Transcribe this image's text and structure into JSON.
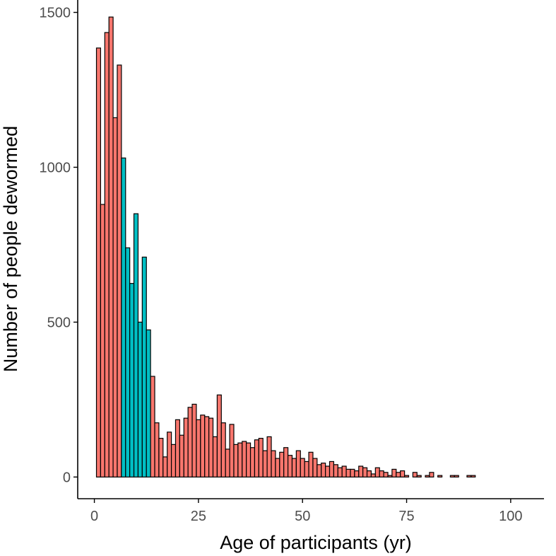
{
  "chart_data": {
    "type": "bar",
    "title": "",
    "xlabel": "Age of participants (yr)",
    "ylabel": "Number of people dewormed",
    "xlim": [
      -4,
      108
    ],
    "ylim": [
      -70,
      1540
    ],
    "x_ticks": [
      0,
      25,
      50,
      75,
      100
    ],
    "y_ticks": [
      0,
      500,
      1000,
      1500
    ],
    "colors": {
      "default": "#F8766D",
      "highlight": "#00BFC4"
    },
    "highlight_range": [
      7,
      13
    ],
    "series": [
      {
        "name": "Number of people dewormed",
        "x": [
          1,
          2,
          3,
          4,
          5,
          6,
          7,
          8,
          9,
          10,
          11,
          12,
          13,
          14,
          15,
          16,
          17,
          18,
          19,
          20,
          21,
          22,
          23,
          24,
          25,
          26,
          27,
          28,
          29,
          30,
          31,
          32,
          33,
          34,
          35,
          36,
          37,
          38,
          39,
          40,
          41,
          42,
          43,
          44,
          45,
          46,
          47,
          48,
          49,
          50,
          51,
          52,
          53,
          54,
          55,
          56,
          57,
          58,
          59,
          60,
          61,
          62,
          63,
          64,
          65,
          66,
          67,
          68,
          69,
          70,
          71,
          72,
          73,
          74,
          75,
          76,
          77,
          78,
          79,
          80,
          81,
          82,
          83,
          84,
          85,
          86,
          87,
          88,
          89,
          90,
          91,
          92,
          93,
          94,
          95,
          96,
          97,
          98,
          99,
          100,
          101,
          102
        ],
        "values": [
          1385,
          880,
          1435,
          1485,
          1160,
          1330,
          1030,
          740,
          625,
          850,
          500,
          710,
          475,
          325,
          175,
          125,
          65,
          145,
          105,
          185,
          135,
          190,
          225,
          235,
          185,
          200,
          195,
          190,
          130,
          265,
          175,
          90,
          170,
          105,
          110,
          115,
          110,
          95,
          120,
          125,
          85,
          130,
          85,
          60,
          80,
          95,
          70,
          60,
          85,
          60,
          50,
          80,
          60,
          40,
          45,
          35,
          50,
          40,
          30,
          35,
          25,
          25,
          20,
          35,
          30,
          20,
          10,
          30,
          20,
          15,
          5,
          25,
          15,
          20,
          5,
          0,
          15,
          5,
          0,
          5,
          15,
          0,
          5,
          0,
          0,
          5,
          5,
          0,
          0,
          5,
          5,
          0,
          0,
          0,
          0,
          0,
          0,
          0,
          0,
          0,
          0,
          0
        ]
      }
    ]
  }
}
